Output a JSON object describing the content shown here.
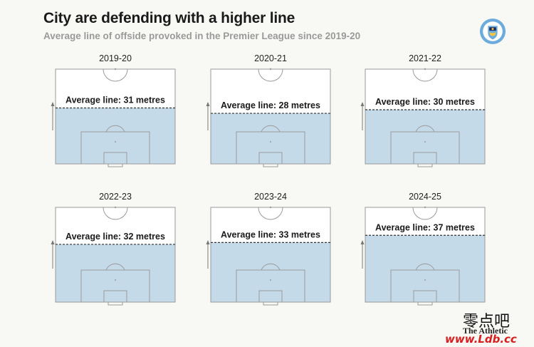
{
  "title": "City are defending with a higher line",
  "subtitle": "Average line of offside provoked in the Premier League since 2019-20",
  "crest": {
    "ring_text": "MANCHESTER CITY"
  },
  "footer": "The Athletic",
  "watermark": {
    "cn": "零点吧",
    "url": "www.Ldb.cc"
  },
  "colors": {
    "zone": "#c5dae9",
    "pitch": "#ffffff",
    "line": "#9a9a9a",
    "dash": "#333333",
    "crest_blue": "#6cabdd"
  },
  "label_prefix": "Average line: ",
  "label_suffix": " metres",
  "chart_data": {
    "type": "bar",
    "title": "City are defending with a higher line",
    "subtitle": "Average line of offside provoked in the Premier League since 2019-20",
    "unit": "metres",
    "categories": [
      "2019-20",
      "2020-21",
      "2021-22",
      "2022-23",
      "2023-24",
      "2024-25"
    ],
    "values": [
      31,
      28,
      30,
      32,
      33,
      37
    ],
    "ylim": [
      0,
      52.5
    ]
  }
}
